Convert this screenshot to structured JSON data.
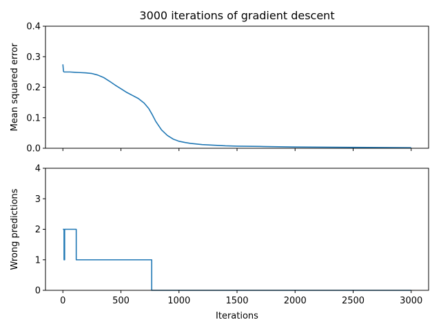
{
  "chart_data": [
    {
      "type": "line",
      "title": "3000 iterations of gradient descent",
      "xlabel": "",
      "ylabel": "Mean squared error",
      "xlim": [
        -150,
        3150
      ],
      "ylim": [
        0,
        0.4
      ],
      "xticks": [
        0,
        500,
        1000,
        1500,
        2000,
        2500,
        3000
      ],
      "xtick_labels_visible": false,
      "yticks": [
        0.0,
        0.1,
        0.2,
        0.3,
        0.4
      ],
      "ytick_labels": [
        "0.0",
        "0.1",
        "0.2",
        "0.3",
        "0.4"
      ],
      "grid": false,
      "series": [
        {
          "color": "#1f77b4",
          "x": [
            0,
            1,
            5,
            10,
            30,
            60,
            100,
            150,
            200,
            250,
            300,
            350,
            400,
            450,
            500,
            550,
            600,
            650,
            700,
            740,
            770,
            800,
            850,
            900,
            950,
            1000,
            1050,
            1100,
            1200,
            1300,
            1400,
            1500,
            1700,
            2000,
            2500,
            3000
          ],
          "y": [
            0.275,
            0.27,
            0.252,
            0.25,
            0.25,
            0.25,
            0.249,
            0.248,
            0.247,
            0.245,
            0.24,
            0.232,
            0.22,
            0.207,
            0.195,
            0.183,
            0.173,
            0.163,
            0.148,
            0.13,
            0.11,
            0.088,
            0.06,
            0.042,
            0.03,
            0.023,
            0.019,
            0.016,
            0.012,
            0.01,
            0.008,
            0.007,
            0.006,
            0.004,
            0.003,
            0.002
          ]
        }
      ]
    },
    {
      "type": "line",
      "title": "",
      "xlabel": "Iterations",
      "ylabel": "Wrong predictions",
      "xlim": [
        -150,
        3150
      ],
      "ylim": [
        0,
        4
      ],
      "xticks": [
        0,
        500,
        1000,
        1500,
        2000,
        2500,
        3000
      ],
      "xtick_labels": [
        "0",
        "500",
        "1000",
        "1500",
        "2000",
        "2500",
        "3000"
      ],
      "yticks": [
        0,
        1,
        2,
        3,
        4
      ],
      "ytick_labels": [
        "0",
        "1",
        "2",
        "3",
        "4"
      ],
      "grid": false,
      "series": [
        {
          "color": "#1f77b4",
          "x": [
            0,
            10,
            10,
            15,
            15,
            20,
            20,
            115,
            115,
            765,
            765,
            3000
          ],
          "y": [
            2,
            2,
            1,
            1,
            2,
            2,
            2,
            2,
            1,
            1,
            0,
            0
          ]
        }
      ]
    }
  ]
}
